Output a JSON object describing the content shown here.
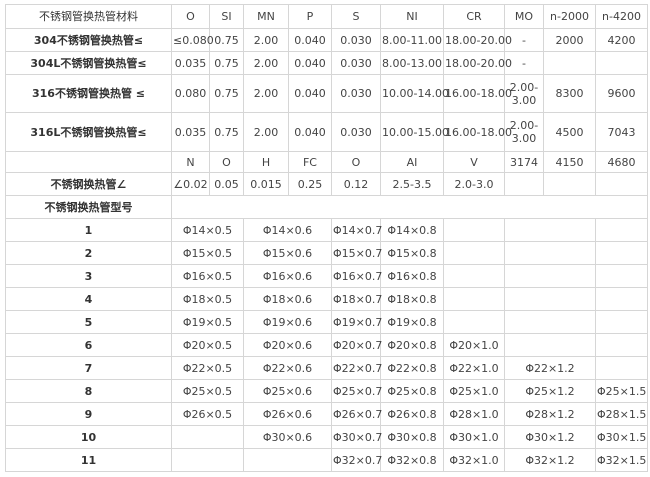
{
  "composition": {
    "header": [
      "不锈钢管换热管材料",
      "O",
      "SI",
      "MN",
      "P",
      "S",
      "NI",
      "CR",
      "MO",
      "n-2000",
      "n-4200"
    ],
    "rows": [
      [
        "304不锈钢管换热管≤",
        "≤0.080",
        "0.75",
        "2.00",
        "0.040",
        "0.030",
        "8.00-11.00",
        "18.00-20.00",
        "-",
        "2000",
        "4200"
      ],
      [
        "304L不锈钢管换热管≤",
        "0.035",
        "0.75",
        "2.00",
        "0.040",
        "0.030",
        "8.00-13.00",
        "18.00-20.00",
        "-",
        "",
        ""
      ],
      [
        "316不锈钢管换热管 ≤",
        "0.080",
        "0.75",
        "2.00",
        "0.040",
        "0.030",
        "10.00-14.00",
        "16.00-18.00",
        "2.00-3.00",
        "8300",
        "9600"
      ],
      [
        "316L不锈钢管换热管≤",
        "0.035",
        "0.75",
        "2.00",
        "0.040",
        "0.030",
        "10.00-15.00",
        "16.00-18.00",
        "2.00-3.00",
        "4500",
        "7043"
      ]
    ],
    "header2": [
      "",
      "N",
      "O",
      "H",
      "FC",
      "O",
      "AI",
      "V",
      "3174",
      "4150",
      "4680"
    ],
    "row2": [
      "不锈钢换热管∠",
      "∠0.02",
      "0.05",
      "0.015",
      "0.25",
      "0.12",
      "2.5-3.5",
      "2.0-3.0",
      "",
      "",
      ""
    ]
  },
  "models": {
    "title": "不锈钢换热管型号",
    "rows": [
      [
        "1",
        "Φ14×0.5",
        "Φ14×0.6",
        "Φ14×0.7",
        "Φ14×0.8",
        "",
        "",
        ""
      ],
      [
        "2",
        "Φ15×0.5",
        "Φ15×0.6",
        "Φ15×0.7",
        "Φ15×0.8",
        "",
        "",
        ""
      ],
      [
        "3",
        "Φ16×0.5",
        "Φ16×0.6",
        "Φ16×0.7",
        "Φ16×0.8",
        "",
        "",
        ""
      ],
      [
        "4",
        "Φ18×0.5",
        "Φ18×0.6",
        "Φ18×0.7",
        "Φ18×0.8",
        "",
        "",
        ""
      ],
      [
        "5",
        "Φ19×0.5",
        "Φ19×0.6",
        "Φ19×0.7",
        "Φ19×0.8",
        "",
        "",
        ""
      ],
      [
        "6",
        "Φ20×0.5",
        "Φ20×0.6",
        "Φ20×0.7",
        "Φ20×0.8",
        "Φ20×1.0",
        "",
        ""
      ],
      [
        "7",
        "Φ22×0.5",
        "Φ22×0.6",
        "Φ22×0.7",
        "Φ22×0.8",
        "Φ22×1.0",
        "Φ22×1.2",
        ""
      ],
      [
        "8",
        "Φ25×0.5",
        "Φ25×0.6",
        "Φ25×0.7",
        "Φ25×0.8",
        "Φ25×1.0",
        "Φ25×1.2",
        "Φ25×1.5"
      ],
      [
        "9",
        "Φ26×0.5",
        "Φ26×0.6",
        "Φ26×0.7",
        "Φ26×0.8",
        "Φ28×1.0",
        "Φ28×1.2",
        "Φ28×1.5"
      ],
      [
        "10",
        "",
        "Φ30×0.6",
        "Φ30×0.7",
        "Φ30×0.8",
        "Φ30×1.0",
        "Φ30×1.2",
        "Φ30×1.5"
      ],
      [
        "11",
        "",
        "",
        "Φ32×0.7",
        "Φ32×0.8",
        "Φ32×1.0",
        "Φ32×1.2",
        "Φ32×1.5"
      ]
    ]
  }
}
